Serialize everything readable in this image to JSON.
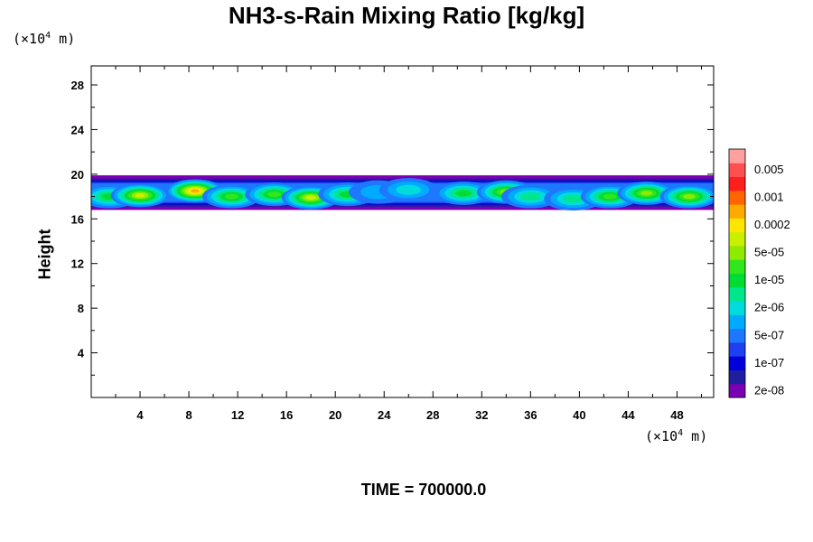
{
  "chart_data": {
    "type": "heatmap",
    "title": "NH3-s-Rain Mixing Ratio [kg/kg]",
    "ylabel": "Height",
    "xlabel": "",
    "x_unit": {
      "prefix": "(×10",
      "exp": "4",
      "suffix": " m)"
    },
    "y_unit": {
      "prefix": "(×10",
      "exp": "4",
      "suffix": " m)"
    },
    "x_ticks": [
      "4",
      "8",
      "12",
      "16",
      "20",
      "24",
      "28",
      "32",
      "36",
      "40",
      "44",
      "48"
    ],
    "y_ticks": [
      "4",
      "8",
      "12",
      "16",
      "20",
      "24",
      "28"
    ],
    "xlim": [
      0,
      51
    ],
    "ylim": [
      0,
      29.7
    ],
    "time_label": "TIME = 700000.0",
    "colorbar": {
      "colors": [
        "#7a00b4",
        "#1e1e9f",
        "#0000dc",
        "#1e40f0",
        "#1e78ff",
        "#00aaff",
        "#00dcdc",
        "#00e68c",
        "#00dc32",
        "#32e61e",
        "#8ceb00",
        "#c8f000",
        "#ffe600",
        "#ffaa00",
        "#ff6400",
        "#ff1e1e",
        "#ff5050",
        "#ffa0a0"
      ],
      "labels": [
        "2e-08",
        "1e-07",
        "5e-07",
        "2e-06",
        "1e-05",
        "5e-05",
        "0.0002",
        "0.001",
        "0.005"
      ]
    },
    "cloud_band": {
      "bottom_km_e4": 16.8,
      "top_km_e4": 19.9,
      "clumps": [
        {
          "x": 1.5,
          "y": 18.0,
          "level": 8
        },
        {
          "x": 4.0,
          "y": 18.1,
          "level": 11
        },
        {
          "x": 8.5,
          "y": 18.5,
          "level": 13
        },
        {
          "x": 11.5,
          "y": 18.0,
          "level": 9
        },
        {
          "x": 15.0,
          "y": 18.2,
          "level": 9
        },
        {
          "x": 18.0,
          "y": 17.9,
          "level": 11
        },
        {
          "x": 21.0,
          "y": 18.2,
          "level": 8
        },
        {
          "x": 23.5,
          "y": 18.4,
          "level": 5
        },
        {
          "x": 26.0,
          "y": 18.6,
          "level": 6
        },
        {
          "x": 30.5,
          "y": 18.3,
          "level": 8
        },
        {
          "x": 34.0,
          "y": 18.4,
          "level": 10
        },
        {
          "x": 36.0,
          "y": 18.0,
          "level": 7
        },
        {
          "x": 39.5,
          "y": 17.8,
          "level": 7
        },
        {
          "x": 42.5,
          "y": 18.0,
          "level": 9
        },
        {
          "x": 45.5,
          "y": 18.3,
          "level": 10
        },
        {
          "x": 49.0,
          "y": 18.0,
          "level": 10
        }
      ]
    }
  }
}
